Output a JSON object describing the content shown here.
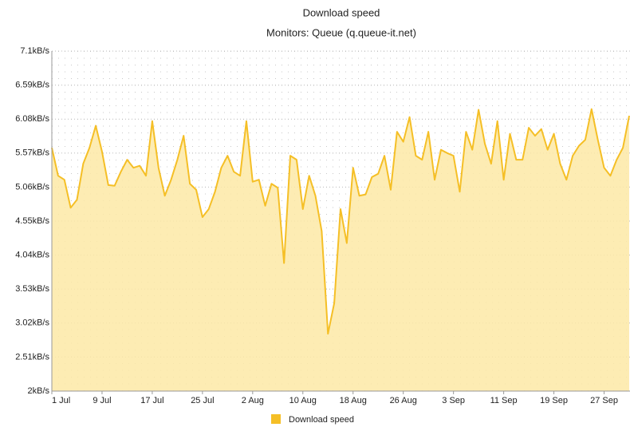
{
  "chart_data": {
    "type": "area",
    "title": "Download speed",
    "subtitle": "Monitors: Queue (q.queue-it.net)",
    "categories": [
      "1 Jul",
      null,
      null,
      null,
      null,
      null,
      null,
      null,
      "9 Jul",
      null,
      null,
      null,
      null,
      null,
      null,
      null,
      "17 Jul",
      null,
      null,
      null,
      null,
      null,
      null,
      null,
      "25 Jul",
      null,
      null,
      null,
      null,
      null,
      null,
      null,
      "2 Aug",
      null,
      null,
      null,
      null,
      null,
      null,
      null,
      "10 Aug",
      null,
      null,
      null,
      null,
      null,
      null,
      null,
      "18 Aug",
      null,
      null,
      null,
      null,
      null,
      null,
      null,
      "26 Aug",
      null,
      null,
      null,
      null,
      null,
      null,
      null,
      "3 Sep",
      null,
      null,
      null,
      null,
      null,
      null,
      null,
      "11 Sep",
      null,
      null,
      null,
      null,
      null,
      null,
      null,
      "19 Sep",
      null,
      null,
      null,
      null,
      null,
      null,
      null,
      "27 Sep",
      null,
      null,
      null,
      null
    ],
    "series": [
      {
        "name": "Download speed",
        "color": "#f5bf26",
        "fill": "#fde9a6",
        "values": [
          5.65,
          5.23,
          5.17,
          4.75,
          4.87,
          5.41,
          5.65,
          5.98,
          5.59,
          5.09,
          5.08,
          5.29,
          5.47,
          5.35,
          5.38,
          5.23,
          6.05,
          5.35,
          4.93,
          5.17,
          5.47,
          5.83,
          5.11,
          5.02,
          4.61,
          4.73,
          4.99,
          5.35,
          5.53,
          5.29,
          5.23,
          6.05,
          5.14,
          5.17,
          4.78,
          5.11,
          5.05,
          3.92,
          5.53,
          5.47,
          4.73,
          5.23,
          4.93,
          4.4,
          2.86,
          3.32,
          4.73,
          4.22,
          5.35,
          4.93,
          4.95,
          5.21,
          5.26,
          5.53,
          5.02,
          5.89,
          5.74,
          6.11,
          5.53,
          5.47,
          5.89,
          5.17,
          5.62,
          5.57,
          5.53,
          4.99,
          5.89,
          5.62,
          6.22,
          5.71,
          5.41,
          6.05,
          5.17,
          5.86,
          5.47,
          5.47,
          5.95,
          5.83,
          5.93,
          5.62,
          5.86,
          5.41,
          5.17,
          5.53,
          5.68,
          5.77,
          6.23,
          5.77,
          5.35,
          5.23,
          5.47,
          5.65,
          6.13
        ]
      }
    ],
    "ylim": [
      2,
      7.1
    ],
    "yticks": [
      {
        "value": 2,
        "label": "2kB/s"
      },
      {
        "value": 2.51,
        "label": "2.51kB/s"
      },
      {
        "value": 3.02,
        "label": "3.02kB/s"
      },
      {
        "value": 3.53,
        "label": "3.53kB/s"
      },
      {
        "value": 4.04,
        "label": "4.04kB/s"
      },
      {
        "value": 4.55,
        "label": "4.55kB/s"
      },
      {
        "value": 5.06,
        "label": "5.06kB/s"
      },
      {
        "value": 5.57,
        "label": "5.57kB/s"
      },
      {
        "value": 6.08,
        "label": "6.08kB/s"
      },
      {
        "value": 6.59,
        "label": "6.59kB/s"
      },
      {
        "value": 7.1,
        "label": "7.1kB/s"
      }
    ],
    "grid": true,
    "legend": "bottom"
  }
}
